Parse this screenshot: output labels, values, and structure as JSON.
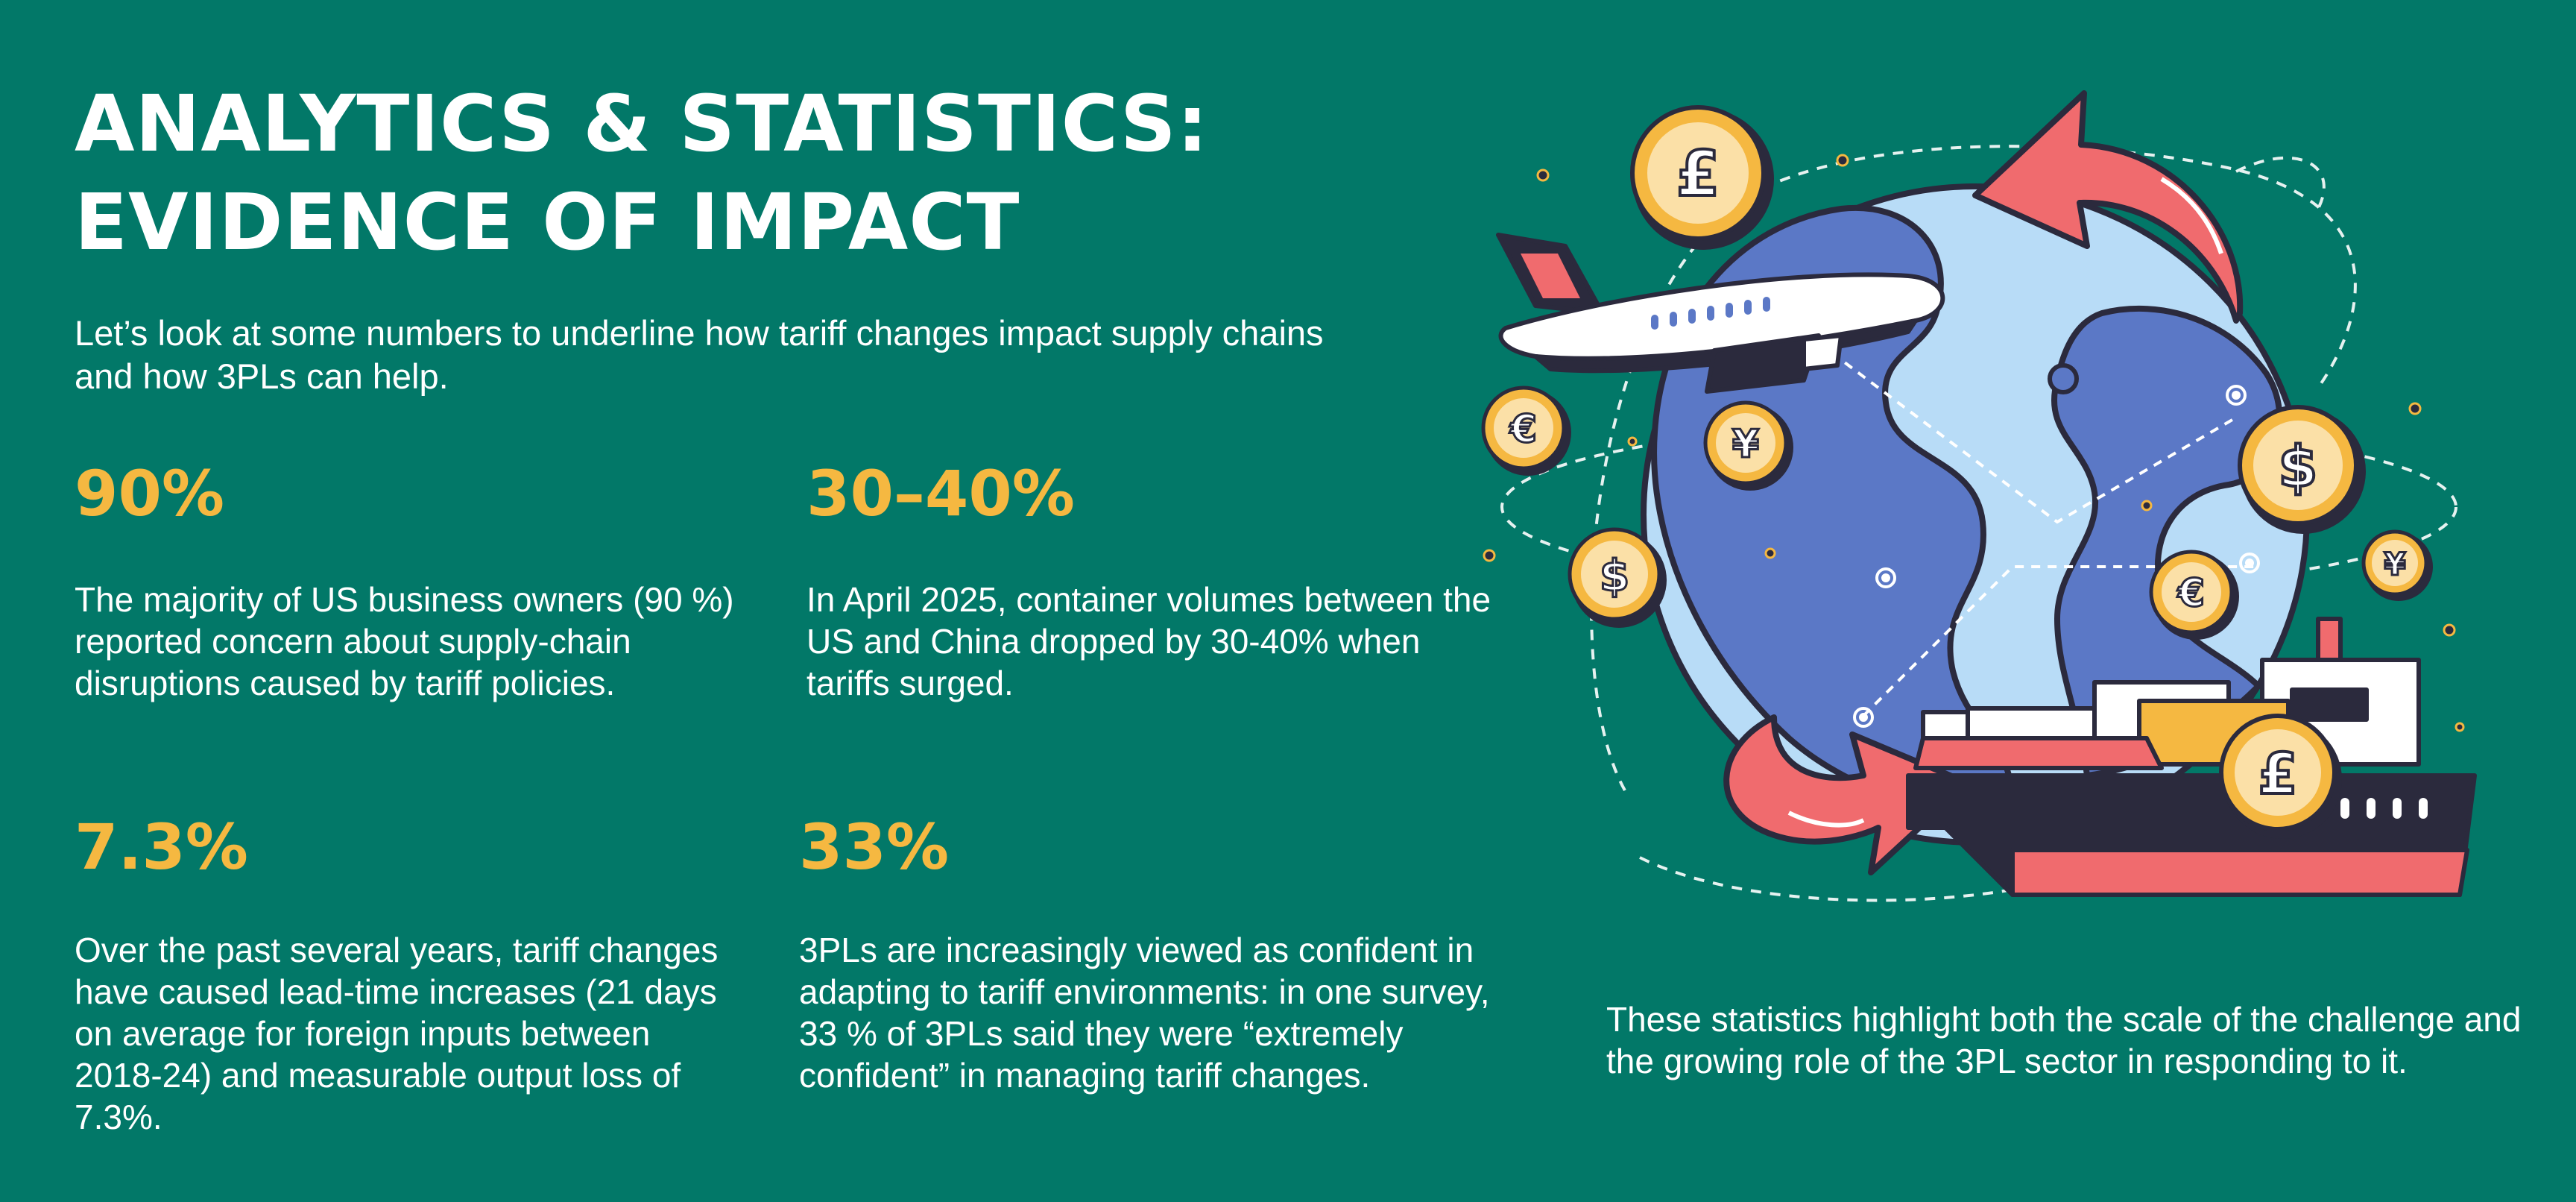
{
  "heading": {
    "line1": "ANALYTICS & STATISTICS:",
    "line2": "EVIDENCE OF IMPACT"
  },
  "intro": "Let’s look at some numbers to underline how tariff changes impact supply chains and how 3PLs can help.",
  "stats": [
    {
      "value": "90%",
      "text": "The majority of US business owners (90 %) reported concern about supply-chain disruptions caused by tariff policies."
    },
    {
      "value": "30–40%",
      "text": "In April 2025, container volumes between the US and China dropped by 30-40% when tariffs surged."
    },
    {
      "value": "7.3%",
      "text": "Over the past several years, tariff changes have caused lead-time increases (21 days on average for foreign inputs between 2018-24) and measurable output loss of 7.3%."
    },
    {
      "value": "33%",
      "text": "3PLs are increasingly viewed as confident in adapting to tariff environments: in one survey, 33 % of 3PLs said they were “extremely confident” in managing tariff changes."
    }
  ],
  "closing": "These statistics highlight both the scale of the challenge and the growing role of the 3PL sector in responding to it.",
  "illustration": {
    "coins": [
      "£",
      "€",
      "¥",
      "$",
      "$",
      "€",
      "¥",
      "£"
    ],
    "colors": {
      "background": "#027868",
      "accent_yellow": "#f5b841",
      "arrow_red": "#f06b6e",
      "globe_light": "#b8dcf7",
      "globe_land": "#5b78c6",
      "outline": "#2b2a3d"
    }
  }
}
